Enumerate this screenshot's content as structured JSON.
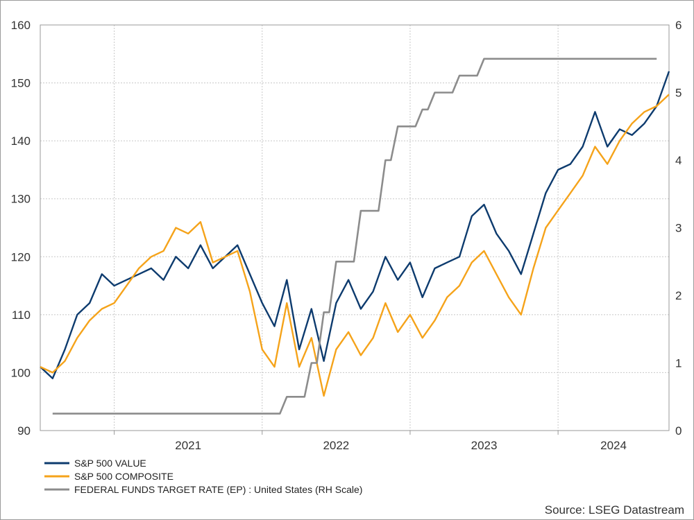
{
  "chart_data": {
    "type": "line",
    "title": "",
    "xlabel": "",
    "ylabel_left": "",
    "ylabel_right": "",
    "x_range": [
      "2020-07",
      "2024-10"
    ],
    "x_ticks": [
      "2021",
      "2022",
      "2023",
      "2024"
    ],
    "ylim_left": [
      90,
      160
    ],
    "yticks_left": [
      "90",
      "100",
      "110",
      "120",
      "130",
      "140",
      "150",
      "160"
    ],
    "ylim_right": [
      0,
      6
    ],
    "yticks_right": [
      "0",
      "1",
      "2",
      "3",
      "4",
      "5",
      "6"
    ],
    "grid": true,
    "legend_position": "bottom-left",
    "series": [
      {
        "name": "S&P 500 VALUE",
        "axis": "left",
        "color": "#0d3b6e",
        "x": [
          "2020-07",
          "2020-08",
          "2020-09",
          "2020-10",
          "2020-11",
          "2020-12",
          "2021-01",
          "2021-02",
          "2021-03",
          "2021-04",
          "2021-05",
          "2021-06",
          "2021-07",
          "2021-08",
          "2021-09",
          "2021-10",
          "2021-11",
          "2021-12",
          "2022-01",
          "2022-02",
          "2022-03",
          "2022-04",
          "2022-05",
          "2022-06",
          "2022-07",
          "2022-08",
          "2022-09",
          "2022-10",
          "2022-11",
          "2022-12",
          "2023-01",
          "2023-02",
          "2023-03",
          "2023-04",
          "2023-05",
          "2023-06",
          "2023-07",
          "2023-08",
          "2023-09",
          "2023-10",
          "2023-11",
          "2023-12",
          "2024-01",
          "2024-02",
          "2024-03",
          "2024-04",
          "2024-05",
          "2024-06",
          "2024-07",
          "2024-08",
          "2024-09",
          "2024-10"
        ],
        "values": [
          101,
          99,
          104,
          110,
          112,
          117,
          115,
          116,
          117,
          118,
          116,
          120,
          118,
          122,
          118,
          120,
          122,
          117,
          112,
          108,
          116,
          104,
          111,
          102,
          112,
          116,
          111,
          114,
          120,
          116,
          119,
          113,
          118,
          119,
          120,
          127,
          129,
          124,
          121,
          117,
          124,
          131,
          135,
          136,
          139,
          145,
          139,
          142,
          141,
          143,
          146,
          152
        ]
      },
      {
        "name": "S&P 500 COMPOSITE",
        "axis": "left",
        "color": "#f5a31a",
        "x": [
          "2020-07",
          "2020-08",
          "2020-09",
          "2020-10",
          "2020-11",
          "2020-12",
          "2021-01",
          "2021-02",
          "2021-03",
          "2021-04",
          "2021-05",
          "2021-06",
          "2021-07",
          "2021-08",
          "2021-09",
          "2021-10",
          "2021-11",
          "2021-12",
          "2022-01",
          "2022-02",
          "2022-03",
          "2022-04",
          "2022-05",
          "2022-06",
          "2022-07",
          "2022-08",
          "2022-09",
          "2022-10",
          "2022-11",
          "2022-12",
          "2023-01",
          "2023-02",
          "2023-03",
          "2023-04",
          "2023-05",
          "2023-06",
          "2023-07",
          "2023-08",
          "2023-09",
          "2023-10",
          "2023-11",
          "2023-12",
          "2024-01",
          "2024-02",
          "2024-03",
          "2024-04",
          "2024-05",
          "2024-06",
          "2024-07",
          "2024-08",
          "2024-09",
          "2024-10"
        ],
        "values": [
          101,
          100,
          102,
          106,
          109,
          111,
          112,
          115,
          118,
          120,
          121,
          125,
          124,
          126,
          119,
          120,
          121,
          114,
          104,
          101,
          112,
          101,
          106,
          96,
          104,
          107,
          103,
          106,
          112,
          107,
          110,
          106,
          109,
          113,
          115,
          119,
          121,
          117,
          113,
          110,
          118,
          125,
          128,
          131,
          134,
          139,
          136,
          140,
          143,
          145,
          146,
          148
        ]
      },
      {
        "name": "FEDERAL FUNDS TARGET RATE (EP) : United States (RH Scale)",
        "axis": "right",
        "color": "#8c8c8c",
        "step": true,
        "x": [
          "2020-08",
          "2022-03",
          "2022-05",
          "2022-06",
          "2022-07",
          "2022-09",
          "2022-11",
          "2022-12",
          "2023-02",
          "2023-03",
          "2023-05",
          "2023-07",
          "2024-09"
        ],
        "values": [
          0.25,
          0.5,
          1.0,
          1.75,
          2.5,
          3.25,
          4.0,
          4.5,
          4.75,
          5.0,
          5.25,
          5.5,
          5.5
        ]
      }
    ],
    "source": "Source: LSEG Datastream"
  }
}
